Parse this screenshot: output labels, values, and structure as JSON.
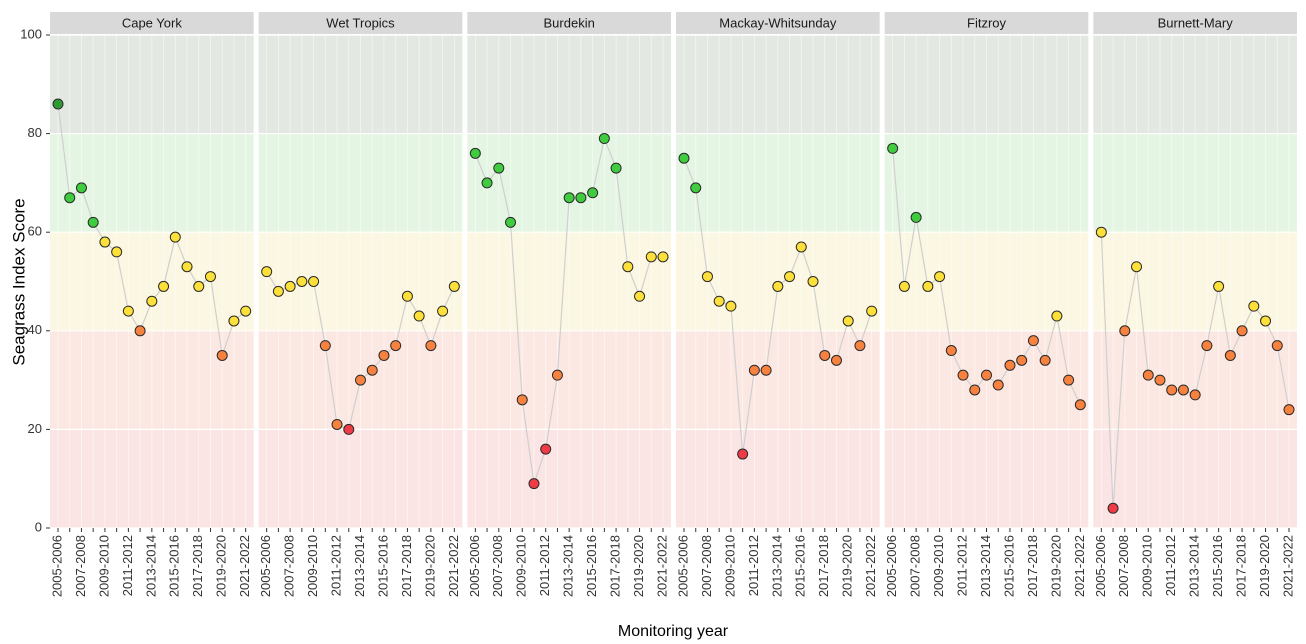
{
  "chart_data": {
    "type": "line",
    "ylabel": "Seagrass Index Score",
    "xlabel": "Monitoring year",
    "categories": [
      "2005-2006",
      null,
      "2007-2008",
      null,
      "2009-2010",
      null,
      "2011-2012",
      null,
      "2013-2014",
      null,
      "2015-2016",
      null,
      "2017-2018",
      null,
      "2019-2020",
      null,
      "2021-2022"
    ],
    "ylim": [
      0,
      100
    ],
    "yticks": [
      0,
      20,
      40,
      60,
      80,
      100
    ],
    "grid": true,
    "line_color": "#cfcfcf",
    "bands": [
      {
        "range": [
          0,
          20
        ],
        "color": "#fbe4e4",
        "point_color": "#ee3b46"
      },
      {
        "range": [
          20,
          40
        ],
        "color": "#fce8e2",
        "point_color": "#f7823f"
      },
      {
        "range": [
          40,
          60
        ],
        "color": "#fbf7e2",
        "point_color": "#fde13a"
      },
      {
        "range": [
          60,
          80
        ],
        "color": "#e5f5e3",
        "point_color": "#3fcc3f"
      },
      {
        "range": [
          80,
          100
        ],
        "color": "#e3e8e2",
        "point_color": "#2e9a38"
      }
    ],
    "series": [
      {
        "name": "Cape York",
        "values": [
          86,
          67,
          69,
          62,
          58,
          56,
          44,
          40,
          46,
          49,
          59,
          53,
          49,
          51,
          35,
          42,
          44
        ]
      },
      {
        "name": "Wet Tropics",
        "values": [
          52,
          48,
          49,
          50,
          50,
          37,
          21,
          20,
          30,
          32,
          35,
          37,
          47,
          43,
          37,
          44,
          49
        ]
      },
      {
        "name": "Burdekin",
        "values": [
          76,
          70,
          73,
          62,
          26,
          9,
          16,
          31,
          67,
          67,
          68,
          79,
          73,
          53,
          47,
          55,
          55
        ]
      },
      {
        "name": "Mackay-Whitsunday",
        "values": [
          75,
          69,
          51,
          46,
          45,
          15,
          32,
          32,
          49,
          51,
          57,
          50,
          35,
          34,
          42,
          37,
          44
        ]
      },
      {
        "name": "Fitzroy",
        "values": [
          77,
          49,
          63,
          49,
          51,
          36,
          31,
          28,
          31,
          29,
          33,
          34,
          38,
          34,
          43,
          30,
          25
        ]
      },
      {
        "name": "Burnett-Mary",
        "values": [
          60,
          4,
          40,
          53,
          31,
          30,
          28,
          28,
          27,
          37,
          49,
          35,
          40,
          45,
          42,
          37,
          24
        ]
      }
    ]
  }
}
